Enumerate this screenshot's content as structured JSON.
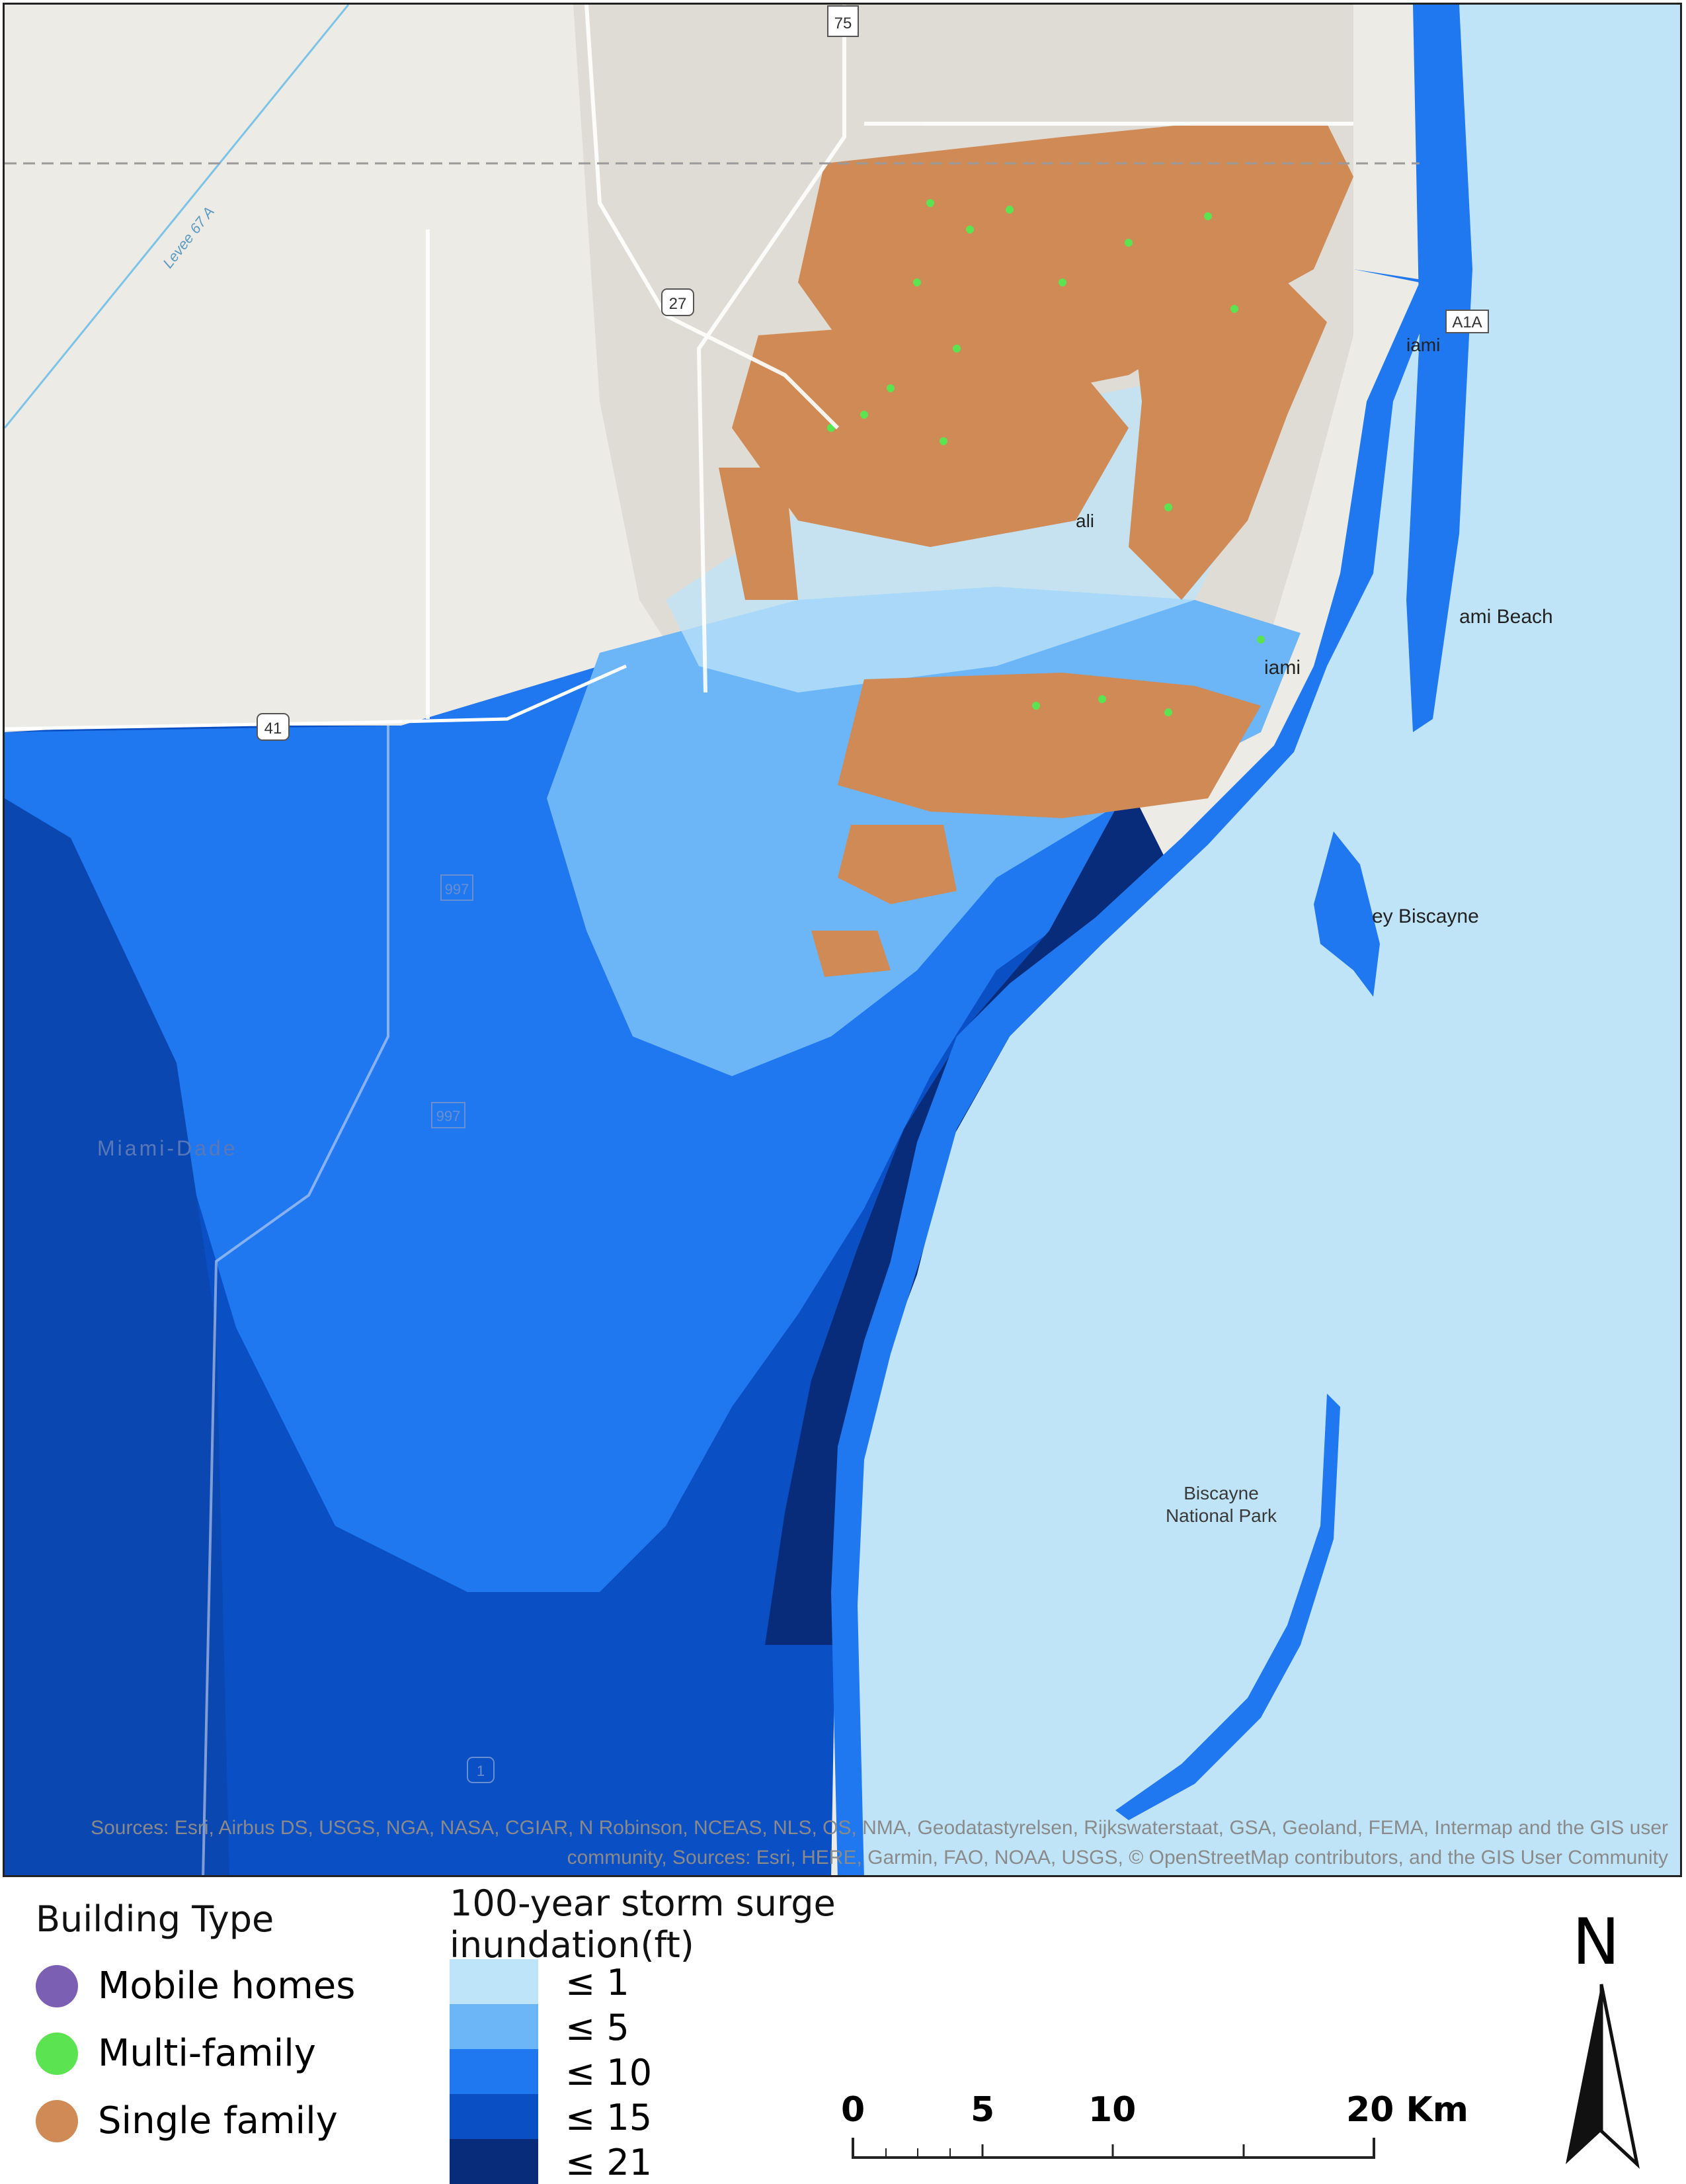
{
  "map": {
    "place_labels": {
      "miami": "iami",
      "miami_beach": "ami Beach",
      "key_biscayne": "ey Biscayne",
      "biscayne_national_park_line1": "Biscayne",
      "biscayne_national_park_line2": "National Park",
      "miami_dade": "Miami-Dade",
      "levee": "Levee 67 A",
      "hialeah": "ali"
    },
    "route_shields": {
      "i75": "75",
      "us27": "27",
      "us41": "41",
      "a1a": "A1A",
      "sr997_north": "997",
      "sr997_south": "997",
      "us1": "1"
    },
    "attribution_line1": "Sources: Esri, Airbus DS, USGS, NGA, NASA, CGIAR, N Robinson, NCEAS, NLS, OS, NMA, Geodatastyrelsen, Rijkswaterstaat, GSA, Geoland, FEMA, Intermap and the GIS user",
    "attribution_line2": "community, Sources: Esri, HERE, Garmin, FAO, NOAA, USGS, © OpenStreetMap contributors, and the GIS User Community"
  },
  "legend_building": {
    "title": "Building Type",
    "items": [
      {
        "label": "Mobile homes",
        "color": "#7b5fb3"
      },
      {
        "label": "Multi-family",
        "color": "#5be352"
      },
      {
        "label": "Single family",
        "color": "#cf8a55"
      }
    ]
  },
  "legend_surge": {
    "title_line1": "100-year storm surge",
    "title_line2": "inundation(ft)",
    "classes": [
      {
        "label": "≤ 1",
        "color": "#bde4f8"
      },
      {
        "label": "≤ 5",
        "color": "#6cb5f6"
      },
      {
        "label": "≤ 10",
        "color": "#1f78f0"
      },
      {
        "label": "≤ 15",
        "color": "#0b4fc4"
      },
      {
        "label": "≤ 21",
        "color": "#082c7a"
      }
    ]
  },
  "scale_bar": {
    "ticks": [
      "0",
      "5",
      "10",
      "20 Km"
    ]
  },
  "north_arrow": {
    "label": "N"
  },
  "colors": {
    "ocean": "#bfe4f8",
    "land": "#ecebe6",
    "urban": "#dedcd5"
  }
}
